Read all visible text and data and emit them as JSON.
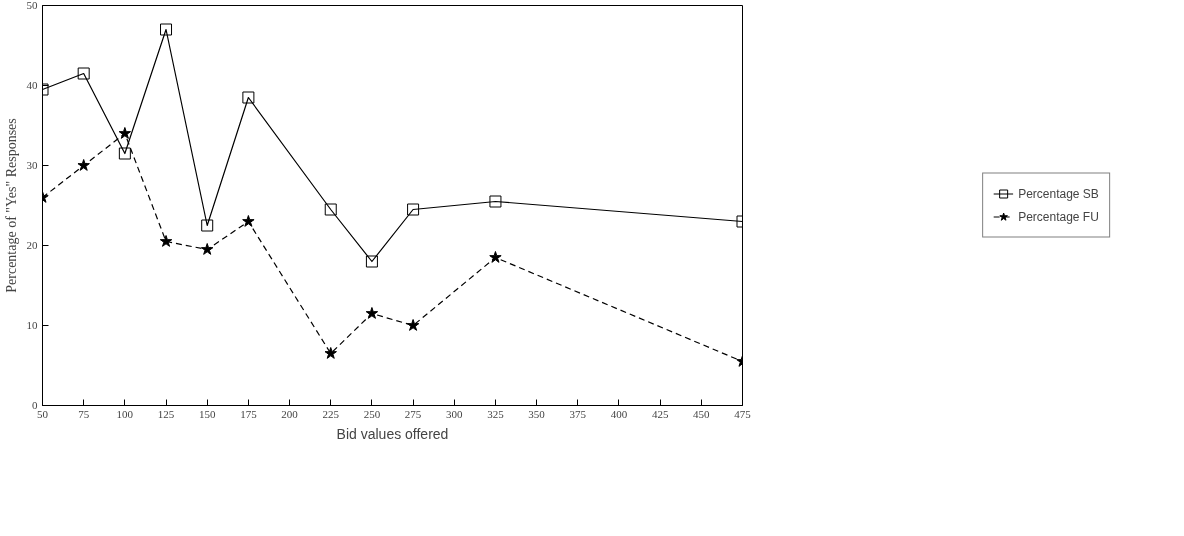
{
  "chart_data": {
    "type": "line",
    "xlabel": "Bid values offered",
    "ylabel": "Percentage of \"Yes\" Responses",
    "x": [
      50,
      75,
      100,
      125,
      150,
      175,
      225,
      250,
      275,
      325,
      475
    ],
    "xlim": [
      50,
      475
    ],
    "xticks": [
      50,
      75,
      100,
      125,
      150,
      175,
      200,
      225,
      250,
      275,
      300,
      325,
      350,
      375,
      400,
      425,
      450,
      475
    ],
    "ylim": [
      0,
      50
    ],
    "yticks": [
      0,
      10,
      20,
      30,
      40,
      50
    ],
    "grid": false,
    "legend": "right",
    "series": [
      {
        "name": "Percentage SB",
        "color": "#000000",
        "marker": "square",
        "line_style": "solid",
        "values": [
          39.5,
          41.5,
          31.5,
          47,
          22.5,
          38.5,
          24.5,
          18,
          24.5,
          25.5,
          23
        ]
      },
      {
        "name": "Percentage FU",
        "color": "#000000",
        "marker": "star",
        "line_style": "dashed",
        "values": [
          26,
          30,
          34,
          20.5,
          19.5,
          23,
          6.5,
          11.5,
          10,
          18.5,
          5.5
        ]
      }
    ]
  }
}
